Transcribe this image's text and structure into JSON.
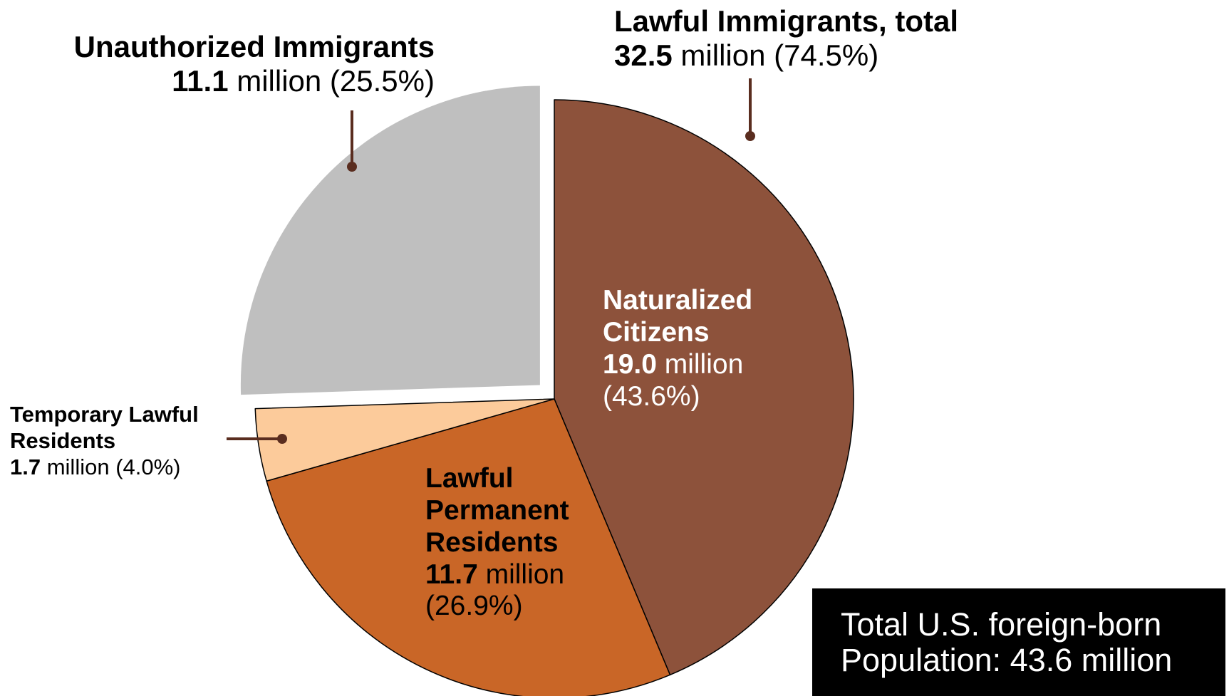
{
  "chart_data": {
    "type": "pie",
    "categories": [
      "Naturalized Citizens",
      "Lawful Permanent Residents",
      "Temporary Lawful Residents",
      "Unauthorized Immigrants"
    ],
    "values": [
      19.0,
      11.7,
      1.7,
      11.1
    ],
    "percent": [
      43.6,
      26.9,
      4.0,
      25.5
    ],
    "colors": [
      "#8d523b",
      "#c96627",
      "#fccb9b",
      "#bfbfbf"
    ],
    "exploded": [
      false,
      false,
      false,
      true
    ],
    "start_angle_deg": 0,
    "direction": "clockwise",
    "annotations": {
      "unauthorized": {
        "name": "Unauthorized Immigrants",
        "value": "11.1",
        "rest": " million (25.5%)"
      },
      "lawful_total": {
        "name": "Lawful Immigrants, total",
        "value": "32.5",
        "rest": " million (74.5%)"
      },
      "temporary": {
        "name_line1": "Temporary Lawful",
        "name_line2": "Residents",
        "value": "1.7",
        "rest": " million (4.0%)"
      },
      "naturalized": {
        "name_line1": "Naturalized",
        "name_line2": "Citizens",
        "value": "19.0",
        "rest": " million",
        "pct": "(43.6%)"
      },
      "permanent": {
        "name_line1": "Lawful",
        "name_line2": "Permanent",
        "name_line3": "Residents",
        "value": "11.7",
        "rest": " million",
        "pct": "(26.9%)"
      }
    },
    "total_box": {
      "line1": "Total U.S. foreign-born",
      "line2": "Population: 43.6 million"
    },
    "leader_color": "#5a2d1f"
  }
}
